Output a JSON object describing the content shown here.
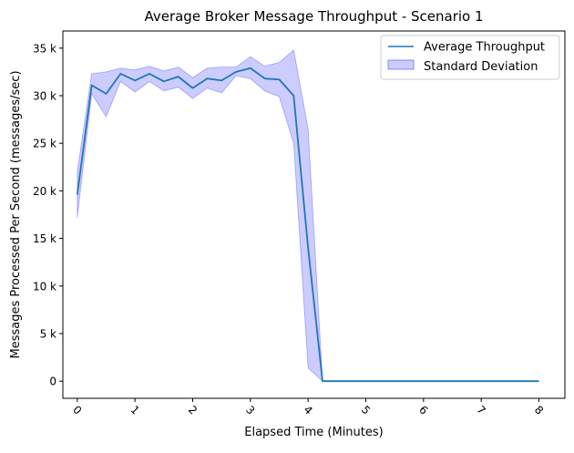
{
  "chart_data": {
    "type": "line",
    "title": "Average Broker Message Throughput - Scenario 1",
    "xlabel": "Elapsed Time (Minutes)",
    "ylabel": "Messages Processed Per Second (messages/sec)",
    "xlim": [
      -0.25,
      8.45
    ],
    "ylim": [
      -1800,
      36800
    ],
    "xticks": [
      0,
      1,
      2,
      3,
      4,
      5,
      6,
      7,
      8
    ],
    "xtick_labels": [
      "0",
      "1",
      "2",
      "3",
      "4",
      "5",
      "6",
      "7",
      "8"
    ],
    "yticks": [
      0,
      5000,
      10000,
      15000,
      20000,
      25000,
      30000,
      35000
    ],
    "ytick_labels": [
      "0",
      "5 k",
      "10 k",
      "15 k",
      "20 k",
      "25 k",
      "30 k",
      "35 k"
    ],
    "legend_position": "top-right",
    "grid": false,
    "x": [
      0,
      0.25,
      0.5,
      0.75,
      1.0,
      1.25,
      1.5,
      1.75,
      2.0,
      2.25,
      2.5,
      2.75,
      3.0,
      3.25,
      3.5,
      3.75,
      4.0,
      4.25,
      4.5,
      4.75,
      5.0,
      5.25,
      5.5,
      5.75,
      6.0,
      6.25,
      6.5,
      6.75,
      7.0,
      7.25,
      7.5,
      7.75,
      8.0
    ],
    "series": [
      {
        "name": "Average Throughput",
        "color": "#1f77b4",
        "values": [
          19600,
          31100,
          30200,
          32300,
          31600,
          32300,
          31500,
          32000,
          30800,
          31800,
          31600,
          32500,
          32900,
          31800,
          31700,
          30000,
          14000,
          0,
          0,
          0,
          0,
          0,
          0,
          0,
          0,
          0,
          0,
          0,
          0,
          0,
          0,
          0,
          0
        ]
      },
      {
        "name": "Standard Deviation",
        "type": "band",
        "color": "#0000ff",
        "lower": [
          17200,
          30200,
          27800,
          31500,
          30400,
          31500,
          30500,
          30900,
          29700,
          30800,
          30300,
          32100,
          31800,
          30500,
          29900,
          25000,
          1400,
          0,
          0,
          0,
          0,
          0,
          0,
          0,
          0,
          0,
          0,
          0,
          0,
          0,
          0,
          0,
          0
        ],
        "upper": [
          22000,
          32300,
          32500,
          32900,
          32700,
          33100,
          32600,
          33000,
          31900,
          32900,
          33000,
          33000,
          34100,
          33100,
          33500,
          34800,
          26500,
          0,
          0,
          0,
          0,
          0,
          0,
          0,
          0,
          0,
          0,
          0,
          0,
          0,
          0,
          0,
          0
        ]
      }
    ]
  }
}
